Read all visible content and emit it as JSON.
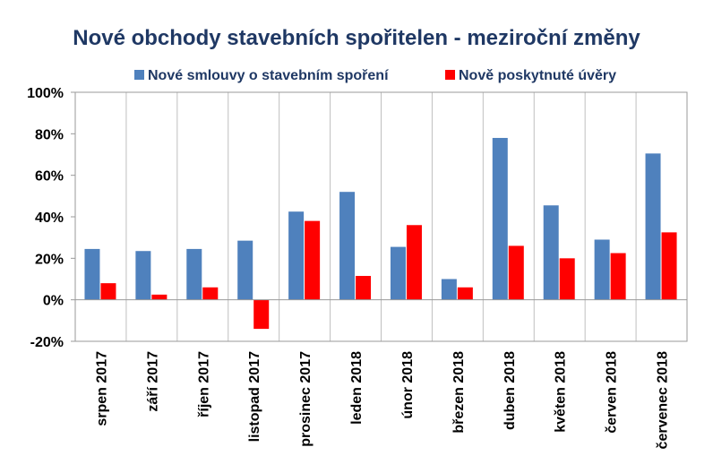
{
  "chart_data": {
    "type": "bar",
    "title": "Nové obchody stavebních spořitelen - meziroční změny",
    "categories": [
      "srpen 2017",
      "září 2017",
      "říjen 2017",
      "listopad 2017",
      "prosinec 2017",
      "leden 2018",
      "únor 2018",
      "březen 2018",
      "duben 2018",
      "květen 2018",
      "červen 2018",
      "červenec 2018"
    ],
    "series": [
      {
        "name": "Nové smlouvy o stavebním spoření",
        "color": "#4F81BD",
        "values": [
          24.5,
          23.5,
          24.5,
          28.5,
          42.5,
          52.0,
          25.5,
          10.0,
          78.0,
          45.5,
          29.0,
          70.5
        ]
      },
      {
        "name": "Nově poskytnuté úvěry",
        "color": "#FF0000",
        "values": [
          8.0,
          2.5,
          6.0,
          -14.0,
          38.0,
          11.5,
          36.0,
          6.0,
          26.0,
          20.0,
          22.5,
          32.5
        ]
      }
    ],
    "ylim": [
      -20,
      100
    ],
    "yticks": [
      -20,
      0,
      20,
      40,
      60,
      80,
      100
    ],
    "ytick_labels": [
      "-20%",
      "0%",
      "20%",
      "40%",
      "60%",
      "80%",
      "100%"
    ],
    "legend": "top",
    "grid": "vertical category separators"
  }
}
